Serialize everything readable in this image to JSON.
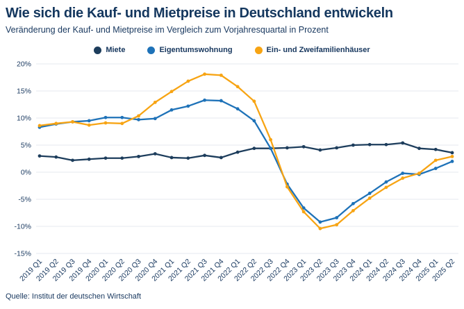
{
  "header": {
    "title": "Wie sich die Kauf- und Mietpreise in Deutschland entwickeln",
    "subtitle": "Veränderung der Kauf- und Mietpreise im Vergleich zum Vorjahresquartal in Prozent"
  },
  "footer": {
    "source": "Quelle: Institut der deutschen Wirtschaft"
  },
  "colors": {
    "text": "#17375e",
    "grid": "#e4e9ef",
    "background": "#ffffff"
  },
  "chart_data": {
    "type": "line",
    "title": "Wie sich die Kauf- und Mietpreise in Deutschland entwickeln",
    "subtitle": "Veränderung der Kauf- und Mietpreise im Vergleich zum Vorjahresquartal in Prozent",
    "grid": true,
    "legend_position": "top",
    "xlabel": "",
    "ylabel": "",
    "ylim": [
      -15,
      20
    ],
    "yticks": [
      20,
      15,
      10,
      5,
      0,
      -5,
      -10,
      -15
    ],
    "y_tick_suffix": "%",
    "categories": [
      "2019 Q1",
      "2019 Q2",
      "2019 Q3",
      "2019 Q4",
      "2020 Q1",
      "2020 Q2",
      "2020 Q3",
      "2020 Q4",
      "2021 Q1",
      "2021 Q2",
      "2021 Q3",
      "2021 Q4",
      "2022 Q1",
      "2022 Q2",
      "2022 Q3",
      "2022 Q4",
      "2023 Q1",
      "2023 Q2",
      "2023 Q3",
      "2023 Q4",
      "2024 Q1",
      "2024 Q2",
      "2024 Q3",
      "2024 Q4",
      "2025 Q1",
      "2025 Q2"
    ],
    "series": [
      {
        "name": "Miete",
        "color": "#1d3d5c",
        "values": [
          3.0,
          2.8,
          2.2,
          2.4,
          2.6,
          2.6,
          2.9,
          3.4,
          2.7,
          2.6,
          3.1,
          2.7,
          3.7,
          4.4,
          4.4,
          4.5,
          4.7,
          4.1,
          4.5,
          5.0,
          5.1,
          5.1,
          5.4,
          4.4,
          4.2,
          3.6
        ]
      },
      {
        "name": "Eigentumswohnung",
        "color": "#1e72b8",
        "values": [
          8.3,
          8.9,
          9.3,
          9.5,
          10.1,
          10.1,
          9.7,
          9.9,
          11.5,
          12.2,
          13.3,
          13.2,
          11.7,
          9.5,
          4.4,
          -2.2,
          -6.6,
          -9.2,
          -8.4,
          -5.8,
          -3.9,
          -1.8,
          -0.2,
          -0.4,
          0.7,
          2.0
        ]
      },
      {
        "name": "Ein- und Zweifamilienhäuser",
        "color": "#f7a413",
        "values": [
          8.6,
          9.0,
          9.3,
          8.7,
          9.1,
          9.0,
          10.4,
          12.9,
          14.9,
          16.8,
          18.1,
          17.9,
          15.8,
          13.1,
          6.0,
          -2.7,
          -7.3,
          -10.4,
          -9.7,
          -7.1,
          -4.8,
          -2.8,
          -1.1,
          -0.2,
          2.2,
          2.9
        ]
      }
    ]
  }
}
